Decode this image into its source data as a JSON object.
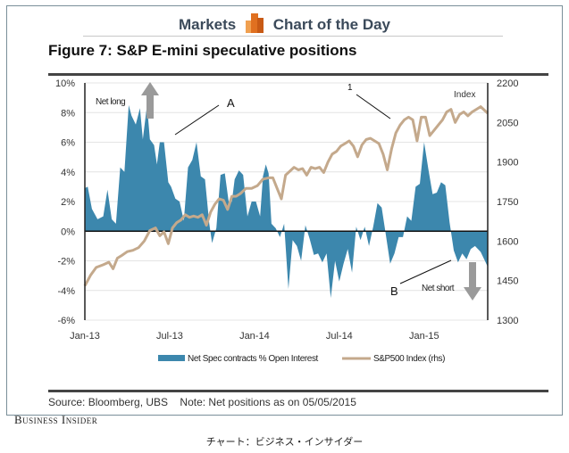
{
  "header": {
    "left": "Markets",
    "right": "Chart of the Day",
    "logo_icon": "bar-chart-logo-icon"
  },
  "figure_title": "Figure 7: S&P E-mini speculative positions",
  "source": "Source: Bloomberg, UBS    Note: Net positions as on 05/05/2015",
  "brand": "Business Insider",
  "caption": "チャート：ビジネス・インサイダー",
  "colors": {
    "area": "#3c87ad",
    "line": "#c4a98c",
    "arrow": "#9a9a9a",
    "grid": "#e4e4e4",
    "axis": "#222222"
  },
  "chart_data": {
    "type": "area",
    "title": "Figure 7: S&P E-mini speculative positions",
    "xlabel": "",
    "ylabel": "",
    "x_tick_labels": [
      "Jan-13",
      "Jul-13",
      "Jan-14",
      "Jul-14",
      "Jan-15"
    ],
    "x_range": [
      0,
      28.5
    ],
    "x_unit": "months since Jan-13",
    "ylim_left": [
      -6,
      10
    ],
    "y_ticks_left": [
      "10%",
      "8%",
      "6%",
      "4%",
      "2%",
      "0%",
      "-2%",
      "-4%",
      "-6%"
    ],
    "y_ticks_left_values": [
      10,
      8,
      6,
      4,
      2,
      0,
      -2,
      -4,
      -6
    ],
    "ylim_right": [
      1300,
      2200
    ],
    "y_ticks_right": [
      "2200",
      "2050",
      "1900",
      "1750",
      "1600",
      "1450",
      "1300"
    ],
    "y_ticks_right_values": [
      2200,
      2050,
      1900,
      1750,
      1600,
      1450,
      1300
    ],
    "grid": true,
    "legend_position": "bottom",
    "series": [
      {
        "name": "Net Spec contracts % Open Interest",
        "axis": "left",
        "kind": "area",
        "x": [
          0,
          0.2,
          0.5,
          0.9,
          1.3,
          1.6,
          1.9,
          2.2,
          2.5,
          2.8,
          3.1,
          3.3,
          3.6,
          3.9,
          4.1,
          4.4,
          4.6,
          4.9,
          5.1,
          5.3,
          5.6,
          5.9,
          6.1,
          6.4,
          6.7,
          7.0,
          7.3,
          7.6,
          7.9,
          8.2,
          8.5,
          8.8,
          9.0,
          9.3,
          9.6,
          9.9,
          10.2,
          10.4,
          10.6,
          10.9,
          11.2,
          11.5,
          11.8,
          12.1,
          12.4,
          12.6,
          12.8,
          13.0,
          13.2,
          13.5,
          13.8,
          14.1,
          14.4,
          14.7,
          15.0,
          15.3,
          15.6,
          15.9,
          16.2,
          16.5,
          16.8,
          17.1,
          17.4,
          17.7,
          18.0,
          18.3,
          18.6,
          18.9,
          19.2,
          19.5,
          19.8,
          20.1,
          20.4,
          20.7,
          21.0,
          21.3,
          21.6,
          21.9,
          22.2,
          22.5,
          22.8,
          23.1,
          23.4,
          23.7,
          24.0,
          24.3,
          24.6,
          24.9,
          25.2,
          25.5,
          25.8,
          26.1,
          26.4,
          26.7,
          27.0,
          27.3,
          27.6,
          28.0,
          28.5
        ],
        "values": [
          2.9,
          3.0,
          1.5,
          0.8,
          1.0,
          2.8,
          0.8,
          0.5,
          4.3,
          4.0,
          8.5,
          7.8,
          7.2,
          8.3,
          6.2,
          8.5,
          6.2,
          5.8,
          4.5,
          6.0,
          6.0,
          3.3,
          3.0,
          2.2,
          2.0,
          0.7,
          4.3,
          4.8,
          6.0,
          3.7,
          3.5,
          0.5,
          -0.8,
          0.2,
          3.8,
          3.9,
          1.8,
          2.0,
          3.5,
          4.1,
          3.8,
          1.0,
          2.0,
          2.0,
          1.0,
          3.7,
          4.5,
          3.9,
          0.5,
          0.2,
          -0.4,
          0.5,
          -3.9,
          -0.6,
          -1.0,
          -2.0,
          0.4,
          -0.5,
          -1.6,
          -1.5,
          -2.1,
          -1.5,
          -4.5,
          -2.0,
          -3.4,
          -2.2,
          -1.2,
          -2.8,
          0.3,
          -0.6,
          0.3,
          -1.0,
          0.3,
          1.9,
          1.6,
          -0.3,
          -2.2,
          -1.5,
          -0.4,
          -0.4,
          1.0,
          0.7,
          3.0,
          3.2,
          6.0,
          4.2,
          2.5,
          2.6,
          3.3,
          3.1,
          0.6,
          -1.3,
          -2.1,
          -1.5,
          -1.9,
          -1.2,
          -1.0,
          -1.4,
          -2.4
        ]
      },
      {
        "name": "S&P500 Index (rhs)",
        "axis": "right",
        "kind": "line",
        "x": [
          0,
          0.4,
          0.8,
          1.3,
          1.7,
          2.0,
          2.3,
          2.6,
          3.0,
          3.4,
          3.8,
          4.2,
          4.6,
          5.0,
          5.3,
          5.6,
          5.9,
          6.2,
          6.5,
          6.8,
          7.1,
          7.4,
          7.7,
          8.0,
          8.3,
          8.6,
          8.9,
          9.2,
          9.5,
          9.8,
          10.1,
          10.4,
          10.7,
          11.0,
          11.4,
          11.8,
          12.2,
          12.6,
          13.0,
          13.3,
          13.6,
          13.9,
          14.2,
          14.5,
          14.8,
          15.1,
          15.4,
          15.7,
          16.0,
          16.3,
          16.6,
          16.9,
          17.2,
          17.5,
          17.8,
          18.1,
          18.4,
          18.7,
          19.0,
          19.3,
          19.6,
          19.9,
          20.2,
          20.5,
          20.8,
          21.1,
          21.4,
          21.7,
          22.0,
          22.3,
          22.6,
          22.9,
          23.2,
          23.5,
          23.8,
          24.1,
          24.4,
          24.7,
          25.0,
          25.3,
          25.6,
          25.9,
          26.2,
          26.5,
          26.8,
          27.1,
          27.4,
          27.7,
          28.0,
          28.5
        ],
        "values": [
          1430,
          1470,
          1500,
          1510,
          1520,
          1495,
          1535,
          1545,
          1560,
          1565,
          1575,
          1600,
          1640,
          1650,
          1620,
          1635,
          1590,
          1650,
          1670,
          1680,
          1700,
          1690,
          1695,
          1690,
          1700,
          1660,
          1710,
          1740,
          1760,
          1755,
          1720,
          1770,
          1770,
          1780,
          1800,
          1800,
          1810,
          1835,
          1840,
          1840,
          1800,
          1760,
          1850,
          1865,
          1880,
          1870,
          1875,
          1850,
          1880,
          1875,
          1880,
          1860,
          1900,
          1930,
          1940,
          1960,
          1970,
          1980,
          1960,
          1920,
          1965,
          1985,
          1990,
          1980,
          1970,
          1930,
          1870,
          1950,
          2010,
          2040,
          2060,
          2070,
          2060,
          1980,
          2070,
          2070,
          2000,
          2020,
          2040,
          2060,
          2090,
          2100,
          2050,
          2080,
          2090,
          2075,
          2090,
          2100,
          2110,
          2085
        ]
      }
    ],
    "annotations": [
      {
        "text": "Net long",
        "arrow": "up"
      },
      {
        "text": "Net short",
        "arrow": "down"
      },
      {
        "text": "A"
      },
      {
        "text": "B"
      },
      {
        "text": "1"
      },
      {
        "text": "Index"
      }
    ]
  }
}
